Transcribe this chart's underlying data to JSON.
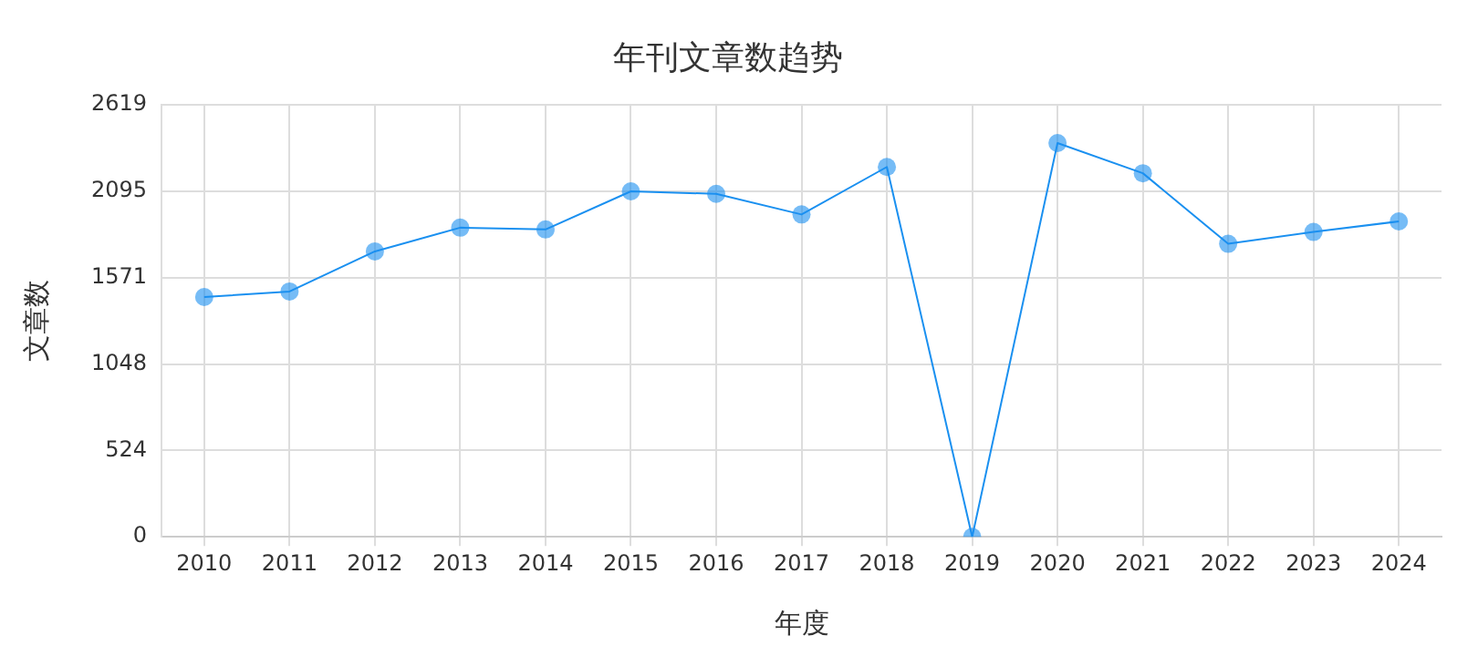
{
  "chart_data": {
    "type": "line",
    "title": "年刊文章数趋势",
    "xlabel": "年度",
    "ylabel": "文章数",
    "categories": [
      "2010",
      "2011",
      "2012",
      "2013",
      "2014",
      "2015",
      "2016",
      "2017",
      "2018",
      "2019",
      "2020",
      "2021",
      "2022",
      "2023",
      "2024"
    ],
    "series": [
      {
        "color": "#1a90f0",
        "values": [
          1454,
          1488,
          1731,
          1875,
          1864,
          2095,
          2080,
          1955,
          2243,
          0,
          2388,
          2205,
          1777,
          1849,
          1913
        ]
      }
    ],
    "ylim": [
      0,
      2619
    ],
    "yticks": [
      0,
      524,
      1048,
      1571,
      2095,
      2619
    ],
    "grid": true,
    "marker": "circle",
    "line_style": "solid"
  }
}
